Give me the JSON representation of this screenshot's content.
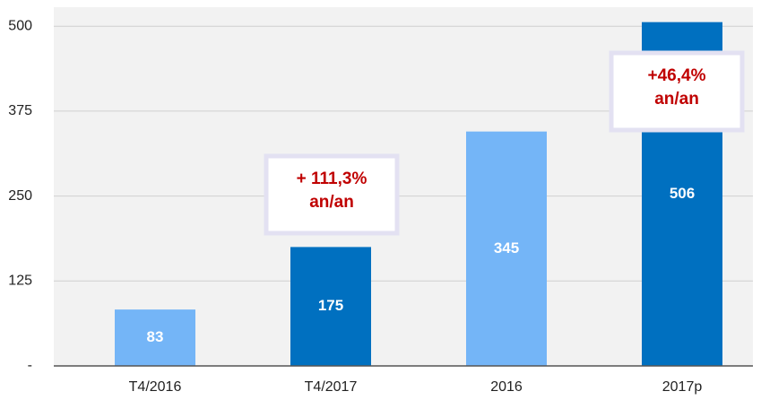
{
  "chart_data": {
    "type": "bar",
    "categories": [
      "T4/2016",
      "T4/2017",
      "2016",
      "2017p"
    ],
    "values": [
      83,
      175,
      345,
      506
    ],
    "colors": [
      "#74b5f7",
      "#0070c0",
      "#74b5f7",
      "#0070c0"
    ],
    "ylim": [
      0,
      528
    ],
    "yticks": [
      {
        "value": 0,
        "label": "-"
      },
      125,
      250,
      375,
      500
    ],
    "grid": true,
    "annotations": [
      [
        "+ 111,3%",
        "an/an"
      ],
      [
        "+46,4%",
        "an/an"
      ]
    ]
  }
}
